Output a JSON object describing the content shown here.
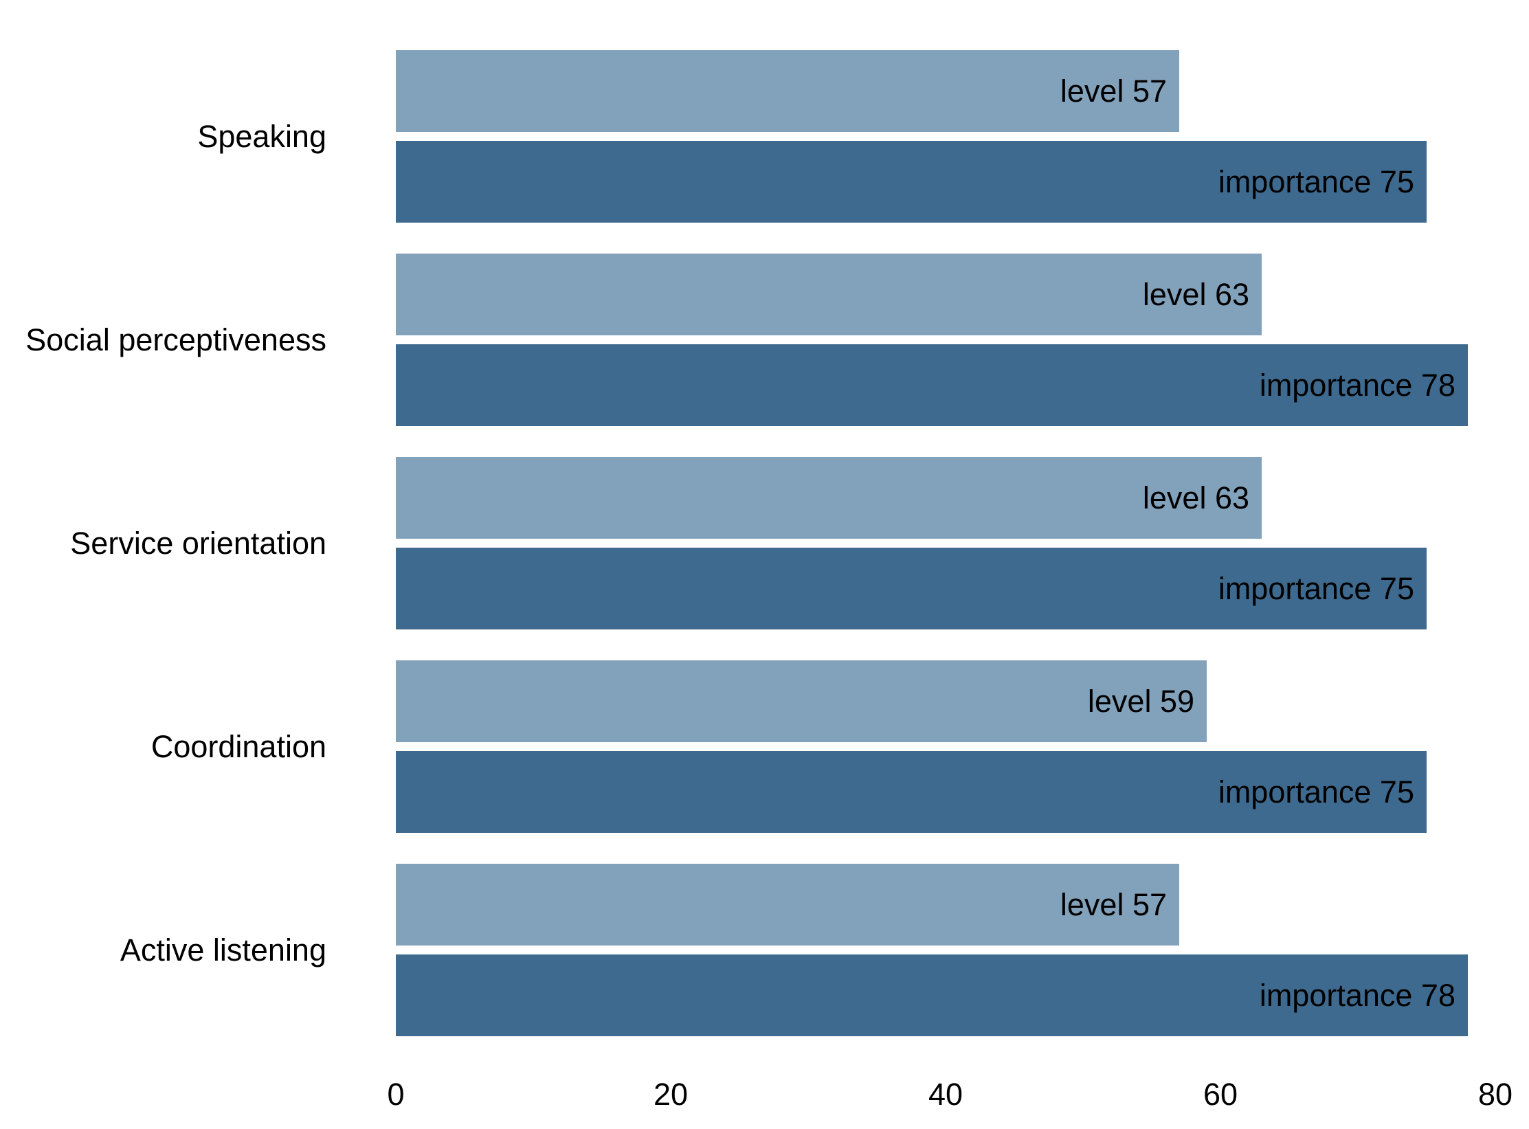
{
  "chart_data": {
    "type": "bar",
    "orientation": "horizontal",
    "categories": [
      "Speaking",
      "Social perceptiveness",
      "Service orientation",
      "Coordination",
      "Active listening"
    ],
    "series": [
      {
        "key": "level",
        "color": "#82a1bb",
        "values": [
          57,
          63,
          63,
          59,
          57
        ],
        "labels": [
          "level 57",
          "level 63",
          "level 63",
          "level 59",
          "level 57"
        ]
      },
      {
        "key": "importance",
        "color": "#3e6a8f",
        "values": [
          75,
          78,
          75,
          75,
          78
        ],
        "labels": [
          "importance 75",
          "importance 78",
          "importance 75",
          "importance 75",
          "importance 78"
        ]
      }
    ],
    "xlim": [
      0,
      80
    ],
    "xticks": [
      "0",
      "20",
      "40",
      "60",
      "80"
    ],
    "xtick_values": [
      0,
      20,
      40,
      60,
      80
    ],
    "title": "",
    "xlabel": "",
    "ylabel": "",
    "grid": false,
    "legend": "none"
  }
}
